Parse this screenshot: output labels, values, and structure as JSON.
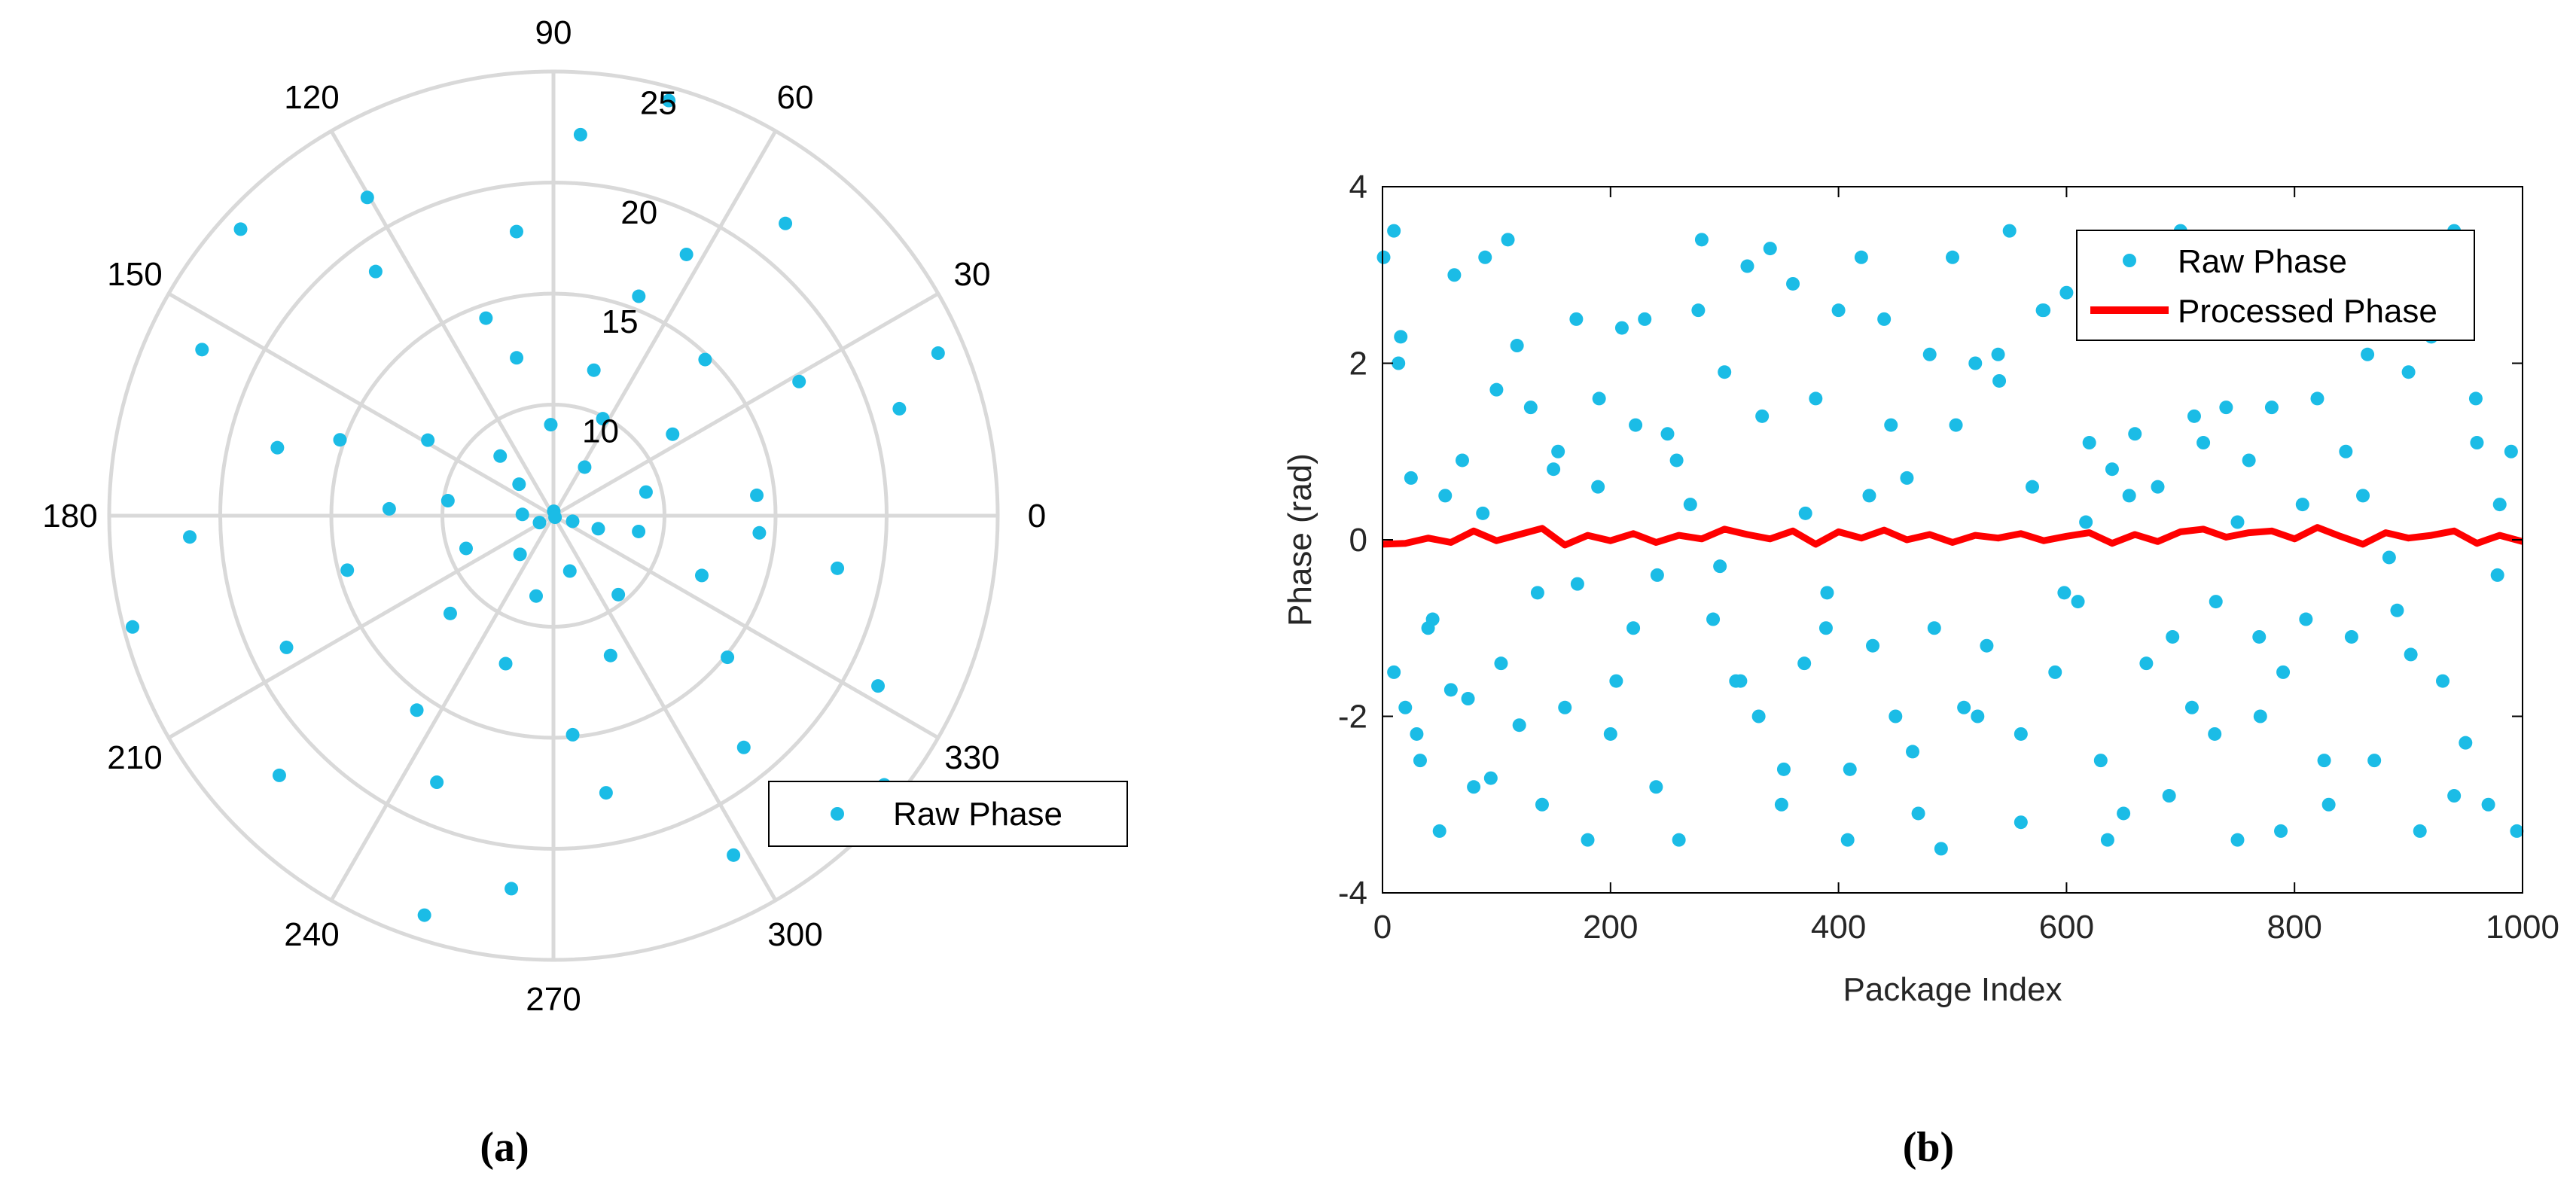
{
  "figure": {
    "label_a": "(a)",
    "label_b": "(b)"
  },
  "colors": {
    "raw": "#1BBCE6",
    "processed": "#FF0000",
    "grid": "#D9D9D9",
    "axis": "#000000"
  },
  "chart_data": [
    {
      "type": "scatter",
      "coordinate_system": "polar",
      "angle_ticks": [
        "0",
        "30",
        "60",
        "90",
        "120",
        "150",
        "180",
        "210",
        "240",
        "270",
        "300",
        "330"
      ],
      "radial_ticks": [
        "10",
        "15",
        "20",
        "25"
      ],
      "rlim": [
        5,
        25
      ],
      "grid": true,
      "legend": {
        "entries": [
          "Raw Phase"
        ],
        "position": "bottom-right"
      },
      "series": [
        {
          "name": "Raw Phase",
          "points": [
            [
              5.2,
              1.5
            ],
            [
              6.4,
              3.1
            ],
            [
              5.7,
              3.6
            ],
            [
              5.1,
              5.5
            ],
            [
              5.9,
              6.0
            ],
            [
              7.3,
              4.0
            ],
            [
              7.6,
              5.0
            ],
            [
              7.1,
              2.4
            ],
            [
              7.6,
              1.0
            ],
            [
              7.1,
              6.0
            ],
            [
              9.3,
              0.25
            ],
            [
              9.9,
              1.1
            ],
            [
              9.1,
              1.6
            ],
            [
              8.6,
              2.3
            ],
            [
              9.8,
              3.0
            ],
            [
              9.2,
              3.5
            ],
            [
              8.7,
              4.5
            ],
            [
              9.6,
              5.4
            ],
            [
              8.9,
              6.1
            ],
            [
              11.5,
              0.6
            ],
            [
              11.8,
              1.3
            ],
            [
              12.3,
              1.8
            ],
            [
              11.6,
              2.6
            ],
            [
              12.4,
              3.1
            ],
            [
              11.4,
              3.9
            ],
            [
              12.0,
              4.4
            ],
            [
              11.8,
              5.1
            ],
            [
              12.2,
              5.9
            ],
            [
              14.2,
              0.1
            ],
            [
              14.8,
              0.8
            ],
            [
              15.6,
              1.2
            ],
            [
              14.4,
              1.9
            ],
            [
              15.2,
              2.8
            ],
            [
              14.6,
              3.4
            ],
            [
              15.7,
              4.1
            ],
            [
              14.9,
              4.8
            ],
            [
              15.1,
              5.6
            ],
            [
              14.3,
              6.2
            ],
            [
              17.6,
              0.5
            ],
            [
              18.2,
              1.1
            ],
            [
              17.9,
              1.7
            ],
            [
              18.6,
              2.2
            ],
            [
              17.8,
              2.9
            ],
            [
              18.4,
              3.6
            ],
            [
              18.1,
              4.3
            ],
            [
              17.7,
              4.9
            ],
            [
              18.5,
              5.4
            ],
            [
              18.0,
              6.1
            ],
            [
              21.3,
              0.3
            ],
            [
              21.8,
              0.9
            ],
            [
              22.2,
              1.5
            ],
            [
              21.6,
              2.1
            ],
            [
              22.5,
              2.7
            ],
            [
              21.4,
              3.2
            ],
            [
              22.0,
              3.9
            ],
            [
              21.9,
              4.6
            ],
            [
              22.3,
              5.2
            ],
            [
              21.5,
              5.8
            ],
            [
              23.8,
              0.4
            ],
            [
              24.4,
              1.3
            ],
            [
              24.1,
              2.4
            ],
            [
              24.6,
              3.4
            ],
            [
              23.9,
              4.4
            ],
            [
              24.2,
              5.6
            ]
          ]
        }
      ]
    },
    {
      "type": "scatter",
      "title": "",
      "xlabel": "Package Index",
      "ylabel": "Phase (rad)",
      "xlim": [
        0,
        1000
      ],
      "ylim": [
        -4,
        4
      ],
      "xticks": [
        "0",
        "200",
        "400",
        "600",
        "800",
        "1000"
      ],
      "yticks": [
        "-4",
        "-2",
        "0",
        "2",
        "4"
      ],
      "grid": false,
      "legend": {
        "entries": [
          "Raw Phase",
          "Processed Phase"
        ],
        "position": "top-right"
      },
      "series": [
        {
          "name": "Raw Phase",
          "x": [
            10,
            10,
            14,
            20,
            25,
            30,
            40,
            50,
            55,
            60,
            70,
            80,
            90,
            95,
            100,
            110,
            120,
            130,
            140,
            150,
            160,
            170,
            180,
            190,
            200,
            210,
            220,
            230,
            240,
            250,
            260,
            270,
            280,
            290,
            300,
            310,
            320,
            330,
            340,
            350,
            360,
            370,
            380,
            390,
            400,
            410,
            420,
            430,
            440,
            450,
            460,
            470,
            480,
            490,
            500,
            510,
            520,
            530,
            540,
            550,
            560,
            570,
            580,
            590,
            600,
            610,
            620,
            630,
            640,
            650,
            660,
            670,
            680,
            690,
            700,
            710,
            720,
            730,
            740,
            750,
            760,
            770,
            780,
            790,
            800,
            810,
            820,
            830,
            840,
            850,
            860,
            870,
            880,
            890,
            900,
            910,
            920,
            930,
            940,
            950,
            960,
            970,
            980,
            990,
            1,
            16,
            33,
            44,
            63,
            75,
            88,
            104,
            118,
            136,
            154,
            171,
            189,
            205,
            222,
            241,
            258,
            277,
            296,
            314,
            333,
            352,
            371,
            389,
            408,
            427,
            446,
            465,
            484,
            503,
            522,
            541,
            560,
            579,
            598,
            617,
            636,
            655,
            674,
            693,
            712,
            731,
            750,
            769,
            788,
            807,
            826,
            845,
            864,
            883,
            902,
            921,
            940,
            959,
            978,
            995
          ],
          "y": [
            3.5,
            -1.5,
            2.0,
            -1.9,
            0.7,
            -2.2,
            -1.0,
            -3.3,
            0.5,
            -1.7,
            0.9,
            -2.8,
            3.2,
            -2.7,
            1.7,
            3.4,
            -2.1,
            1.5,
            -3.0,
            0.8,
            -1.9,
            2.5,
            -3.4,
            1.6,
            -2.2,
            2.4,
            -1.0,
            2.5,
            -2.8,
            1.2,
            -3.4,
            0.4,
            3.4,
            -0.9,
            1.9,
            -1.6,
            3.1,
            -2.0,
            3.3,
            -3.0,
            2.9,
            -1.4,
            1.6,
            -0.6,
            2.6,
            -2.6,
            3.2,
            -1.2,
            2.5,
            -2.0,
            0.7,
            -3.1,
            2.1,
            -3.5,
            3.2,
            -1.9,
            2.0,
            -1.2,
            2.1,
            3.5,
            -3.2,
            0.6,
            2.6,
            -1.5,
            2.8,
            -0.7,
            1.1,
            -2.5,
            0.8,
            -3.1,
            1.2,
            -1.4,
            0.6,
            -2.9,
            3.5,
            -1.9,
            1.1,
            -2.2,
            1.5,
            -3.4,
            0.9,
            -2.0,
            1.5,
            -1.5,
            3.4,
            -0.9,
            1.6,
            -3.0,
            2.5,
            -1.1,
            0.5,
            -2.5,
            2.8,
            -0.8,
            1.9,
            -3.3,
            2.3,
            -1.6,
            3.5,
            -2.3,
            1.1,
            -3.0,
            0.4,
            1.0,
            3.2,
            2.3,
            -2.5,
            -0.9,
            3.0,
            -1.8,
            0.3,
            -1.4,
            2.2,
            -0.6,
            1.0,
            -0.5,
            0.6,
            -1.6,
            1.3,
            -0.4,
            0.9,
            2.6,
            -0.3,
            -1.6,
            1.4,
            -2.6,
            0.3,
            -1.0,
            -3.4,
            0.5,
            1.3,
            -2.4,
            -1.0,
            1.3,
            -2.0,
            1.8,
            -2.2,
            2.6,
            -0.6,
            0.2,
            -3.4,
            0.5,
            2.7,
            -1.1,
            1.4,
            -0.7,
            0.2,
            -1.1,
            -3.3,
            0.4,
            -2.5,
            1.0,
            2.1,
            -0.2,
            -1.3,
            3.0,
            -2.9,
            1.6,
            -0.4,
            -3.3
          ]
        },
        {
          "name": "Processed Phase",
          "x": [
            0,
            20,
            40,
            60,
            80,
            100,
            120,
            140,
            160,
            180,
            200,
            220,
            240,
            260,
            280,
            300,
            320,
            340,
            360,
            380,
            400,
            420,
            440,
            460,
            480,
            500,
            520,
            540,
            560,
            580,
            600,
            620,
            640,
            660,
            680,
            700,
            720,
            740,
            760,
            780,
            800,
            820,
            840,
            860,
            880,
            900,
            920,
            940,
            960,
            980,
            1000
          ],
          "y": [
            -0.05,
            -0.04,
            0.02,
            -0.03,
            0.1,
            -0.01,
            0.06,
            0.13,
            -0.06,
            0.05,
            -0.01,
            0.07,
            -0.03,
            0.05,
            0.01,
            0.12,
            0.06,
            0.01,
            0.1,
            -0.05,
            0.09,
            0.02,
            0.11,
            0.0,
            0.06,
            -0.03,
            0.05,
            0.02,
            0.07,
            -0.01,
            0.04,
            0.08,
            -0.04,
            0.06,
            -0.02,
            0.09,
            0.12,
            0.03,
            0.08,
            0.1,
            0.01,
            0.14,
            0.04,
            -0.05,
            0.08,
            0.02,
            0.05,
            0.1,
            -0.04,
            0.05,
            -0.02
          ]
        }
      ]
    }
  ]
}
